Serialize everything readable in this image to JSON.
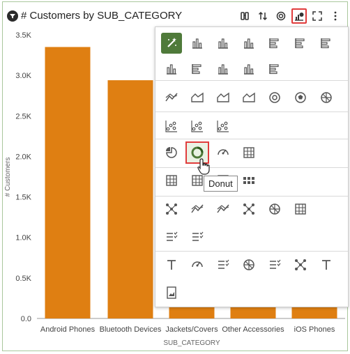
{
  "header": {
    "title": "# Customers by SUB_CATEGORY"
  },
  "tooltip": {
    "text": "Donut"
  },
  "icons": {
    "filter": "filter-icon",
    "toolbar": [
      "binoculars-icon",
      "sort-icon",
      "target-icon",
      "chart-type-icon",
      "fullscreen-icon",
      "more-icon"
    ]
  },
  "colors": {
    "bar": "#df7f12",
    "selected": "#4f7a3a",
    "highlight": "#e03c3c"
  },
  "chart_data": {
    "type": "bar",
    "categories": [
      "Android Phones",
      "Bluetooth Devices",
      "Jackets/Covers",
      "Other Accessories",
      "iOS Phones"
    ],
    "values": [
      3350,
      2940,
      140,
      140,
      140
    ],
    "xlabel": "SUB_CATEGORY",
    "ylabel": "# Customers",
    "ylim": [
      0,
      3500
    ],
    "ytick_labels": [
      "0.0",
      "0.5K",
      "1.0K",
      "1.5K",
      "2.0K",
      "2.5K",
      "3.0K",
      "3.5K"
    ],
    "grid": false,
    "legend": "none"
  },
  "chart_types": [
    "recommended-icon",
    "bar-icon",
    "stacked-bar-icon",
    "100-stacked-bar-icon",
    "horizontal-bar-icon",
    "horizontal-stacked-bar-icon",
    "horizontal-100-stacked-bar-icon",
    "combo-icon",
    "horizontal-combo-icon",
    "waterfall-icon",
    "boxplot-icon",
    "horizontal-boxplot-icon",
    "line-icon",
    "area-icon",
    "stacked-area-icon",
    "100-area-icon",
    "radar-icon",
    "polar-icon",
    "sunburst-icon",
    "scatter-icon",
    "bubble-icon",
    "dot-plot-icon",
    "pie-icon",
    "donut-icon",
    "gauge-icon",
    "treemap-icon",
    "pivot-icon",
    "table-icon",
    "tile-icon",
    "grid-heat-icon",
    "network-icon",
    "parallel-icon",
    "funnel-icon",
    "tree-icon",
    "chord-icon",
    "sankey-icon",
    "list-icon",
    "checklist-icon",
    "tile-number-icon",
    "map-icon",
    "text-box-icon",
    "cloud-icon",
    "spacer-icon",
    "hierarchy-icon",
    "text-icon",
    "image-icon"
  ]
}
